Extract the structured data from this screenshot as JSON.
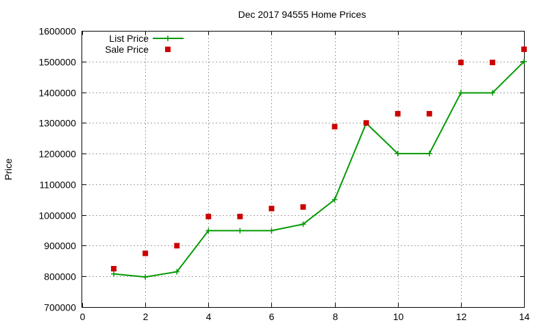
{
  "chart_data": {
    "type": "line",
    "title": "Dec 2017 94555 Home Prices",
    "xlabel": "",
    "ylabel": "Price",
    "xlim": [
      0,
      14
    ],
    "ylim": [
      700000,
      1600000
    ],
    "xticks": [
      0,
      2,
      4,
      6,
      8,
      10,
      12,
      14
    ],
    "yticks": [
      700000,
      800000,
      900000,
      1000000,
      1100000,
      1200000,
      1300000,
      1400000,
      1500000,
      1600000
    ],
    "xtick_labels": [
      "0",
      "2",
      "4",
      "6",
      "8",
      "10",
      "12",
      "14"
    ],
    "ytick_labels": [
      "700000",
      "800000",
      "900000",
      "1000000",
      "1100000",
      "1200000",
      "1300000",
      "1400000",
      "1500000",
      "1600000"
    ],
    "grid": true,
    "legend_position": "top-left",
    "series": [
      {
        "name": "List Price",
        "style": "line-with-plus-markers",
        "color": "#009900",
        "x": [
          1,
          2,
          3,
          4,
          5,
          6,
          7,
          8,
          9,
          10,
          11,
          12,
          13,
          14
        ],
        "y": [
          808000,
          798000,
          815000,
          949000,
          949000,
          949000,
          970000,
          1050000,
          1299000,
          1200000,
          1200000,
          1398000,
          1398000,
          1500000
        ]
      },
      {
        "name": "Sale Price",
        "style": "square-markers",
        "color": "#cc0000",
        "x": [
          1,
          2,
          3,
          4,
          5,
          6,
          7,
          8,
          9,
          10,
          11,
          12,
          13,
          14
        ],
        "y": [
          825000,
          875000,
          900000,
          995000,
          995000,
          1021000,
          1026000,
          1288000,
          1300000,
          1330000,
          1330000,
          1497000,
          1497000,
          1540000
        ]
      }
    ]
  }
}
